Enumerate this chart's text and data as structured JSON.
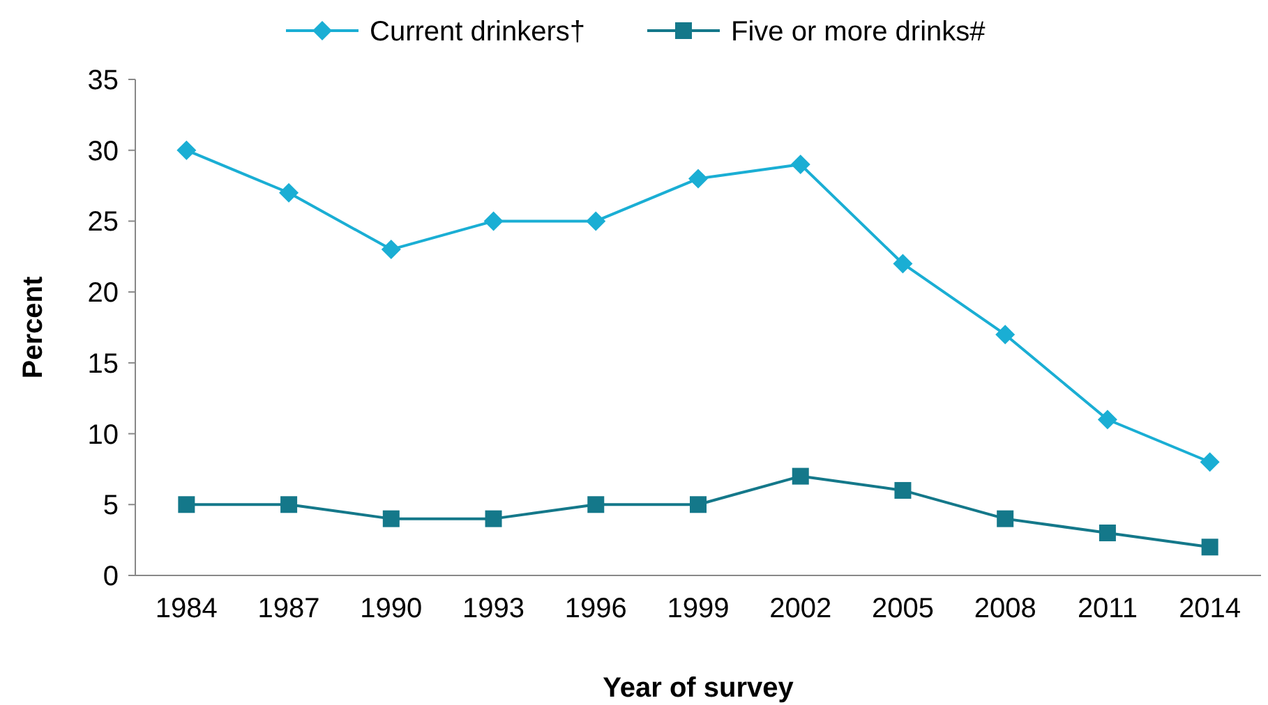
{
  "chart_data": {
    "type": "line",
    "xlabel": "Year of survey",
    "ylabel": "Percent",
    "categories": [
      "1984",
      "1987",
      "1990",
      "1993",
      "1996",
      "1999",
      "2002",
      "2005",
      "2008",
      "2011",
      "2014"
    ],
    "series": [
      {
        "name": "Current drinkers†",
        "color": "#1aaed4",
        "marker": "diamond",
        "values": [
          30,
          27,
          23,
          25,
          25,
          28,
          29,
          22,
          17,
          11,
          8
        ]
      },
      {
        "name": "Five or more drinks#",
        "color": "#14788a",
        "marker": "square",
        "values": [
          5,
          5,
          4,
          4,
          5,
          5,
          7,
          6,
          4,
          3,
          2
        ]
      }
    ],
    "ylim": [
      0,
      35
    ],
    "yticks": [
      0,
      5,
      10,
      15,
      20,
      25,
      30,
      35
    ],
    "grid": false,
    "legend": "top",
    "line_style": "solid"
  }
}
